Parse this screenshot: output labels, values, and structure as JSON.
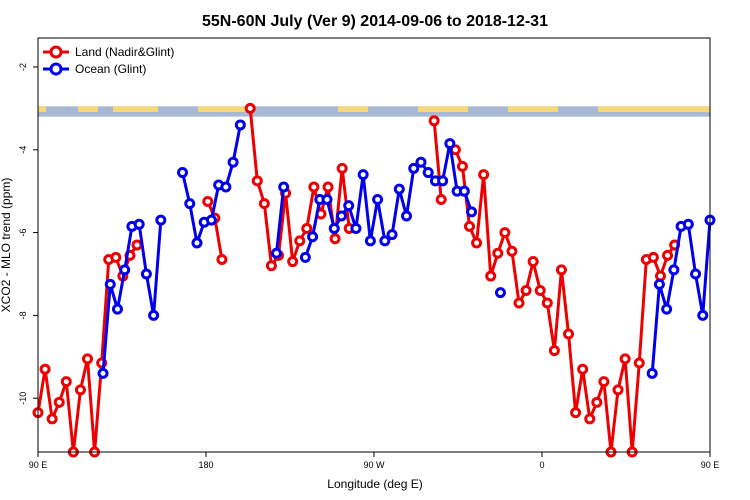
{
  "chart_data": {
    "type": "line",
    "title": "55N-60N July (Ver 9)   2014-09-06 to 2018-12-31",
    "xlabel": "Longitude (deg E)",
    "ylabel": "XCO2 - MLO trend (ppm)",
    "xlim": [
      90,
      450
    ],
    "ylim": [
      -11.3,
      -1.3
    ],
    "x_ticks": [
      {
        "value": 90,
        "label": "90 E"
      },
      {
        "value": 180,
        "label": "180"
      },
      {
        "value": 270,
        "label": "90 W"
      },
      {
        "value": 360,
        "label": "0"
      },
      {
        "value": 450,
        "label": "90 E"
      },
      {
        "value": 540,
        "label": "180"
      }
    ],
    "y_ticks": [
      {
        "value": -2,
        "label": "-2"
      },
      {
        "value": -4,
        "label": "-4"
      },
      {
        "value": -6,
        "label": "-6"
      },
      {
        "value": -8,
        "label": "-8"
      },
      {
        "value": -10,
        "label": "-10"
      }
    ],
    "legend_position": "top-left",
    "map_strip": {
      "y_top": -2.95,
      "y_bottom": -3.2,
      "ocean_color": "#a9b9d3",
      "land_color": "#f7d97a"
    },
    "series": [
      {
        "name": "Land (Nadir&Glint)",
        "color": "#ee0000",
        "points": [
          [
            -10.35,
            -9.3,
            -10.5,
            -10.1,
            -9.6,
            -11.3,
            -9.8,
            -9.05,
            -11.3,
            -9.15,
            -6.65,
            -6.6,
            -7.05,
            -6.55,
            -6.3,
            null,
            null,
            null,
            null,
            null,
            null,
            null,
            null,
            null,
            -5.25,
            -5.65,
            -6.65,
            null,
            null,
            null,
            -3.0,
            -4.75,
            -5.3,
            -6.8,
            -6.55,
            -5.05,
            -6.7,
            -6.2,
            -5.9,
            -4.9,
            -5.55,
            -4.9,
            -6.15,
            -4.45,
            -5.9,
            null,
            null,
            null,
            null,
            null,
            null,
            null,
            null,
            null,
            null,
            null,
            -3.3,
            -5.2,
            null,
            -4.0,
            -4.4,
            -5.85,
            -6.25,
            -4.6,
            -7.05,
            -6.5,
            -6.0,
            -6.45,
            -7.7,
            -7.4,
            -6.7,
            -7.4,
            -7.7,
            -8.85,
            -6.9,
            -8.45,
            -10.35,
            -9.3,
            -10.5,
            -10.1,
            -9.6,
            -11.3,
            -9.8,
            -9.05,
            -11.3,
            -9.15,
            -6.65,
            -6.6,
            -7.05,
            -6.55,
            -6.3,
            null,
            null,
            null,
            null,
            null
          ]
        ]
      },
      {
        "name": "Ocean (Glint)",
        "color": "#0000ee",
        "points": [
          [
            null,
            null,
            null,
            null,
            null,
            null,
            null,
            null,
            null,
            -9.4,
            -7.25,
            -7.85,
            -6.9,
            -5.85,
            -5.8,
            -7.0,
            -8.0,
            -5.7,
            null,
            null,
            -4.55,
            -5.3,
            -6.25,
            -5.75,
            -5.7,
            -4.85,
            -4.9,
            -4.3,
            -3.4,
            null,
            null,
            null,
            null,
            -6.5,
            -4.9,
            null,
            null,
            -6.6,
            -6.1,
            -5.2,
            -5.2,
            -5.9,
            -5.6,
            -5.35,
            -5.9,
            -4.6,
            -6.2,
            -5.2,
            -6.2,
            -6.05,
            -4.95,
            -5.6,
            -4.45,
            -4.3,
            -4.55,
            -4.75,
            -4.75,
            -3.85,
            -5.0,
            -5.0,
            -5.5,
            null,
            null,
            null,
            -7.45,
            null,
            null,
            null,
            null,
            null,
            null,
            null,
            null,
            null,
            null,
            null,
            null,
            null,
            null,
            null,
            null,
            null,
            null,
            null,
            null,
            -9.4,
            -7.25,
            -7.85,
            -6.9,
            -5.85,
            -5.8,
            -7.0,
            -8.0,
            -5.7
          ]
        ]
      }
    ]
  }
}
